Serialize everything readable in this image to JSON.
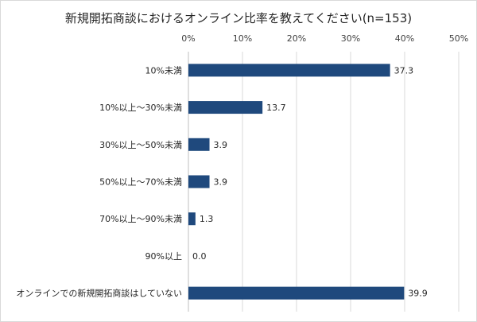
{
  "chart_data": {
    "type": "bar",
    "orientation": "horizontal",
    "title": "新規開拓商談におけるオンライン比率を教えてください(n=153)",
    "categories": [
      "10%未満",
      "10%以上～30%未満",
      "30%以上～50%未満",
      "50%以上～70%未満",
      "70%以上～90%未満",
      "90%以上",
      "オンラインでの新規開拓商談はしていない"
    ],
    "values": [
      37.3,
      13.7,
      3.9,
      3.9,
      1.3,
      0.0,
      39.9
    ],
    "data_labels": [
      "37.3",
      "13.7",
      "3.9",
      "3.9",
      "1.3",
      "0.0",
      "39.9"
    ],
    "xlim": [
      0,
      50
    ],
    "x_ticks": [
      "0%",
      "10%",
      "20%",
      "30%",
      "40%",
      "50%"
    ],
    "x_axis_position": "top",
    "grid": true,
    "bar_color": "#1f497d"
  }
}
